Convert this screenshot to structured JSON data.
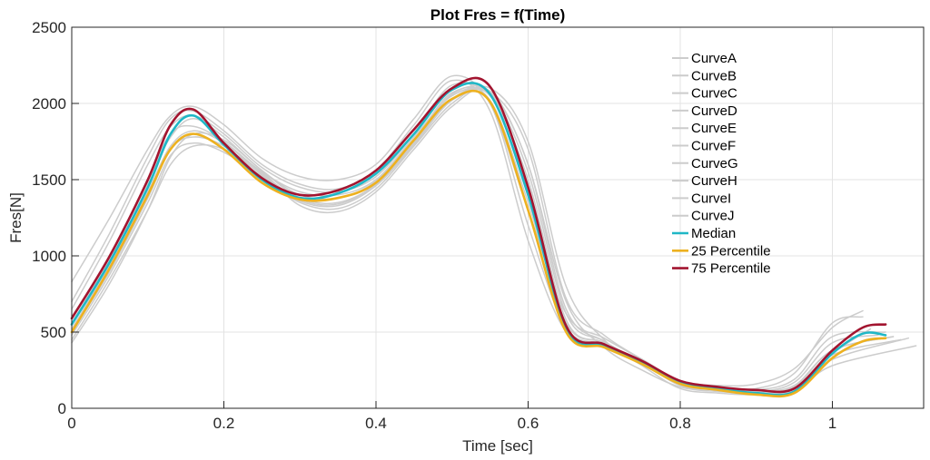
{
  "chart_data": {
    "type": "line",
    "title": "Plot Fres = f(Time)",
    "xlabel": "Time [sec]",
    "ylabel": "Fres[N]",
    "xlim": [
      0,
      1.12
    ],
    "ylim": [
      0,
      2500
    ],
    "xticks": [
      0,
      0.2,
      0.4,
      0.6,
      0.8,
      1
    ],
    "xtick_labels": [
      "0",
      "0.2",
      "0.4",
      "0.6",
      "0.8",
      "1"
    ],
    "yticks": [
      0,
      500,
      1000,
      1500,
      2000,
      2500
    ],
    "ytick_labels": [
      "0",
      "500",
      "1000",
      "1500",
      "2000",
      "2500"
    ],
    "grid": true,
    "legend_position": "top-right",
    "series": [
      {
        "name": "CurveA",
        "color": "#cccccc",
        "x": [
          0,
          0.05,
          0.1,
          0.13,
          0.16,
          0.2,
          0.25,
          0.3,
          0.35,
          0.4,
          0.45,
          0.5,
          0.55,
          0.6,
          0.65,
          0.7,
          0.75,
          0.8,
          0.85,
          0.9,
          0.95,
          1.0,
          1.04
        ],
        "y": [
          830,
          1250,
          1700,
          1920,
          1980,
          1860,
          1640,
          1520,
          1500,
          1600,
          1900,
          2180,
          2000,
          1300,
          620,
          460,
          320,
          180,
          150,
          160,
          260,
          530,
          640
        ]
      },
      {
        "name": "CurveB",
        "color": "#cccccc",
        "x": [
          0,
          0.05,
          0.1,
          0.13,
          0.16,
          0.2,
          0.25,
          0.3,
          0.35,
          0.4,
          0.45,
          0.5,
          0.55,
          0.6,
          0.65,
          0.7,
          0.75,
          0.8,
          0.85,
          0.9,
          0.95,
          1.0,
          1.05
        ],
        "y": [
          450,
          850,
          1300,
          1600,
          1720,
          1700,
          1550,
          1330,
          1290,
          1420,
          1700,
          1980,
          2080,
          1600,
          700,
          400,
          250,
          140,
          110,
          100,
          140,
          360,
          520
        ]
      },
      {
        "name": "CurveC",
        "color": "#cccccc",
        "x": [
          0,
          0.05,
          0.1,
          0.13,
          0.16,
          0.2,
          0.25,
          0.3,
          0.35,
          0.4,
          0.45,
          0.5,
          0.55,
          0.6,
          0.65,
          0.7,
          0.75,
          0.8,
          0.85,
          0.9,
          0.95,
          1.0,
          1.08
        ],
        "y": [
          600,
          1000,
          1500,
          1800,
          1850,
          1750,
          1550,
          1420,
          1400,
          1500,
          1780,
          2050,
          2050,
          1500,
          580,
          430,
          290,
          170,
          120,
          110,
          150,
          380,
          470
        ]
      },
      {
        "name": "CurveD",
        "color": "#cccccc",
        "x": [
          0,
          0.05,
          0.1,
          0.13,
          0.16,
          0.2,
          0.25,
          0.3,
          0.35,
          0.4,
          0.45,
          0.5,
          0.55,
          0.6,
          0.65,
          0.7,
          0.75,
          0.8,
          0.85,
          0.9,
          0.95,
          1.0,
          1.1
        ],
        "y": [
          430,
          820,
          1300,
          1650,
          1800,
          1760,
          1560,
          1380,
          1350,
          1470,
          1750,
          2060,
          2080,
          1700,
          720,
          480,
          320,
          180,
          130,
          100,
          120,
          320,
          460
        ]
      },
      {
        "name": "CurveE",
        "color": "#cccccc",
        "x": [
          0,
          0.05,
          0.1,
          0.13,
          0.16,
          0.2,
          0.25,
          0.3,
          0.35,
          0.4,
          0.45,
          0.5,
          0.55,
          0.6,
          0.65,
          0.7,
          0.75,
          0.8,
          0.85,
          0.9,
          0.95,
          1.0,
          1.06
        ],
        "y": [
          560,
          980,
          1480,
          1780,
          1900,
          1780,
          1560,
          1400,
          1380,
          1490,
          1760,
          2070,
          2020,
          1350,
          560,
          430,
          300,
          150,
          120,
          110,
          170,
          430,
          480
        ]
      },
      {
        "name": "CurveF",
        "color": "#cccccc",
        "x": [
          0,
          0.05,
          0.1,
          0.13,
          0.16,
          0.2,
          0.25,
          0.3,
          0.35,
          0.4,
          0.45,
          0.5,
          0.55,
          0.6,
          0.65,
          0.7,
          0.75,
          0.8,
          0.85,
          0.9,
          0.95,
          1.0,
          1.11
        ],
        "y": [
          480,
          880,
          1350,
          1660,
          1740,
          1680,
          1520,
          1350,
          1310,
          1440,
          1720,
          2000,
          2100,
          1750,
          800,
          450,
          280,
          130,
          100,
          90,
          110,
          280,
          410
        ]
      },
      {
        "name": "CurveG",
        "color": "#cccccc",
        "x": [
          0,
          0.05,
          0.1,
          0.13,
          0.16,
          0.2,
          0.25,
          0.3,
          0.35,
          0.4,
          0.45,
          0.5,
          0.55,
          0.6,
          0.65,
          0.7,
          0.75,
          0.8,
          0.85,
          0.9,
          0.95,
          1.0,
          1.07
        ],
        "y": [
          650,
          1100,
          1600,
          1850,
          1920,
          1800,
          1580,
          1450,
          1420,
          1520,
          1800,
          2120,
          2000,
          1200,
          530,
          420,
          300,
          160,
          130,
          120,
          190,
          470,
          500
        ]
      },
      {
        "name": "CurveH",
        "color": "#cccccc",
        "x": [
          0,
          0.05,
          0.1,
          0.13,
          0.16,
          0.2,
          0.25,
          0.3,
          0.35,
          0.4,
          0.45,
          0.5,
          0.55,
          0.6,
          0.65,
          0.7,
          0.75,
          0.8,
          0.85,
          0.9,
          0.95,
          1.0,
          1.09
        ],
        "y": [
          520,
          940,
          1420,
          1720,
          1820,
          1740,
          1540,
          1370,
          1340,
          1470,
          1740,
          2030,
          2070,
          1600,
          650,
          440,
          300,
          160,
          120,
          100,
          130,
          350,
          450
        ]
      },
      {
        "name": "CurveI",
        "color": "#cccccc",
        "x": [
          0,
          0.05,
          0.1,
          0.13,
          0.16,
          0.2,
          0.25,
          0.3,
          0.35,
          0.4,
          0.45,
          0.5,
          0.55,
          0.6,
          0.65,
          0.7,
          0.75,
          0.8,
          0.85,
          0.9,
          0.95,
          1.0,
          1.04
        ],
        "y": [
          700,
          1150,
          1650,
          1900,
          1950,
          1820,
          1600,
          1470,
          1440,
          1560,
          1860,
          2150,
          1950,
          1100,
          500,
          410,
          290,
          170,
          140,
          130,
          230,
          560,
          600
        ]
      },
      {
        "name": "CurveJ",
        "color": "#cccccc",
        "x": [
          0,
          0.05,
          0.1,
          0.13,
          0.16,
          0.2,
          0.25,
          0.3,
          0.35,
          0.4,
          0.45,
          0.5,
          0.55,
          0.6,
          0.65,
          0.7,
          0.75,
          0.8,
          0.85,
          0.9,
          0.95,
          1.0,
          1.08
        ],
        "y": [
          500,
          900,
          1380,
          1700,
          1780,
          1720,
          1530,
          1360,
          1330,
          1460,
          1730,
          2020,
          2060,
          1550,
          620,
          440,
          300,
          160,
          120,
          100,
          140,
          380,
          470
        ]
      },
      {
        "name": "Median",
        "color": "#1fb7c6",
        "x": [
          0,
          0.05,
          0.1,
          0.13,
          0.16,
          0.2,
          0.25,
          0.3,
          0.35,
          0.4,
          0.45,
          0.5,
          0.55,
          0.6,
          0.65,
          0.7,
          0.75,
          0.8,
          0.85,
          0.9,
          0.95,
          1.0,
          1.04,
          1.07
        ],
        "y": [
          550,
          960,
          1450,
          1800,
          1920,
          1730,
          1500,
          1380,
          1410,
          1540,
          1800,
          2090,
          2060,
          1400,
          520,
          410,
          300,
          170,
          130,
          100,
          110,
          360,
          490,
          480
        ]
      },
      {
        "name": "25 Percentile",
        "color": "#edb120",
        "x": [
          0,
          0.05,
          0.1,
          0.13,
          0.16,
          0.2,
          0.25,
          0.3,
          0.35,
          0.4,
          0.45,
          0.5,
          0.55,
          0.6,
          0.65,
          0.7,
          0.75,
          0.8,
          0.85,
          0.9,
          0.95,
          1.0,
          1.04,
          1.07
        ],
        "y": [
          500,
          920,
          1400,
          1700,
          1800,
          1700,
          1480,
          1370,
          1380,
          1480,
          1760,
          2030,
          2010,
          1300,
          500,
          400,
          290,
          160,
          120,
          90,
          100,
          330,
          440,
          460
        ]
      },
      {
        "name": "75 Percentile",
        "color": "#a2142f",
        "x": [
          0,
          0.05,
          0.1,
          0.13,
          0.16,
          0.2,
          0.25,
          0.3,
          0.35,
          0.4,
          0.45,
          0.5,
          0.55,
          0.6,
          0.65,
          0.7,
          0.75,
          0.8,
          0.85,
          0.9,
          0.95,
          1.0,
          1.04,
          1.07
        ],
        "y": [
          590,
          1000,
          1500,
          1860,
          1960,
          1740,
          1510,
          1400,
          1430,
          1560,
          1830,
          2100,
          2110,
          1450,
          540,
          420,
          310,
          180,
          140,
          120,
          130,
          380,
          530,
          550
        ]
      }
    ]
  }
}
